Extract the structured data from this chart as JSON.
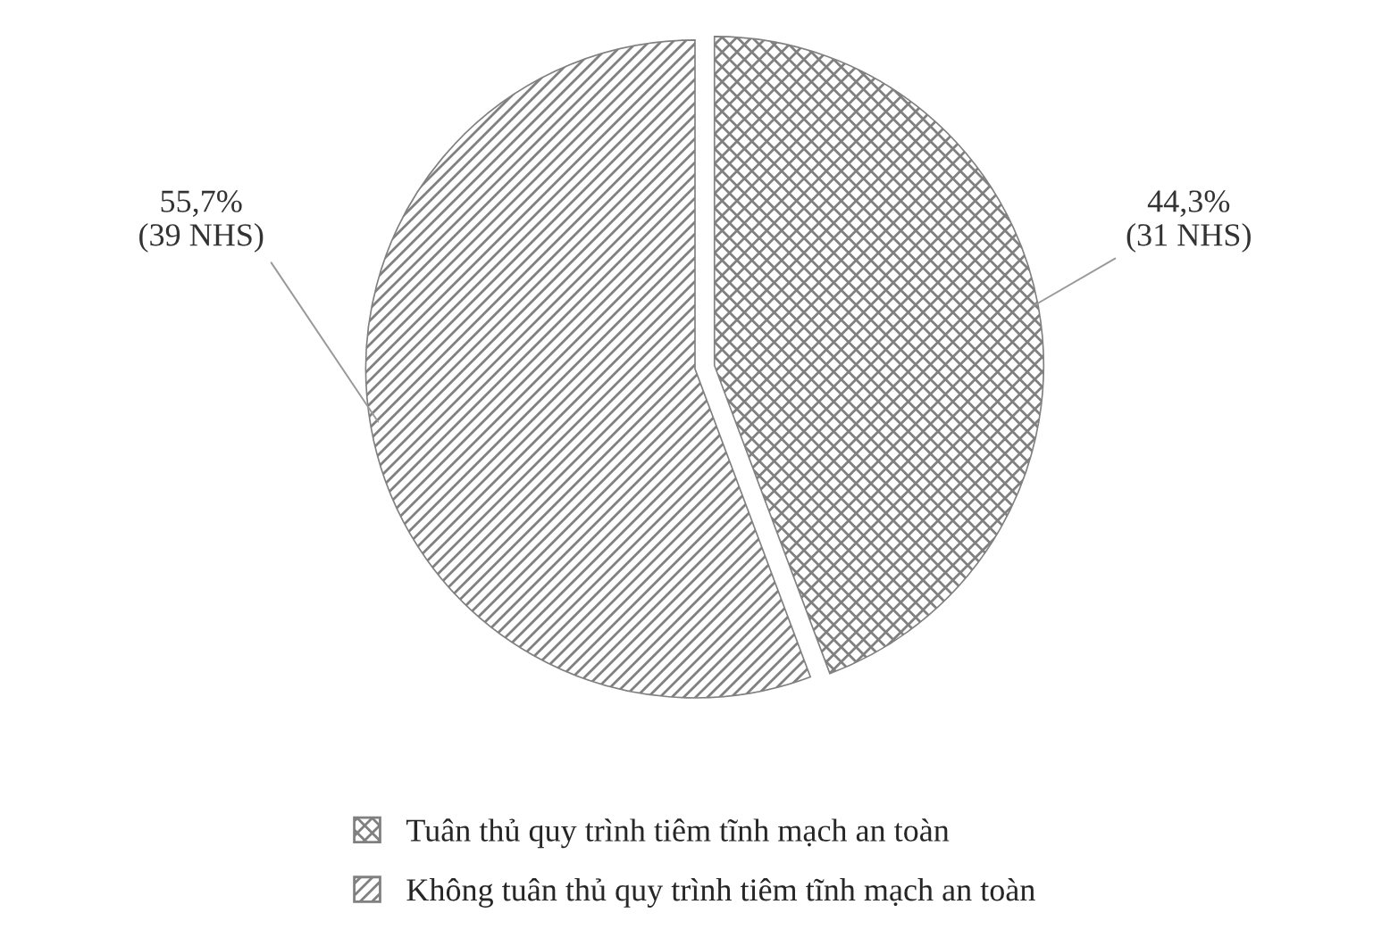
{
  "chart_data": {
    "type": "pie",
    "categories": [
      "Tuân thủ quy trình tiêm tĩnh mạch an toàn",
      "Không tuân thủ quy trình tiêm tĩnh mạch an toàn"
    ],
    "values": [
      44.3,
      55.7
    ],
    "value_labels": [
      "44,3%\n(31 NHS)",
      "55,7%\n(39 NHS)"
    ],
    "colors": [
      "#808080",
      "#808080"
    ],
    "legend": "bottom"
  }
}
